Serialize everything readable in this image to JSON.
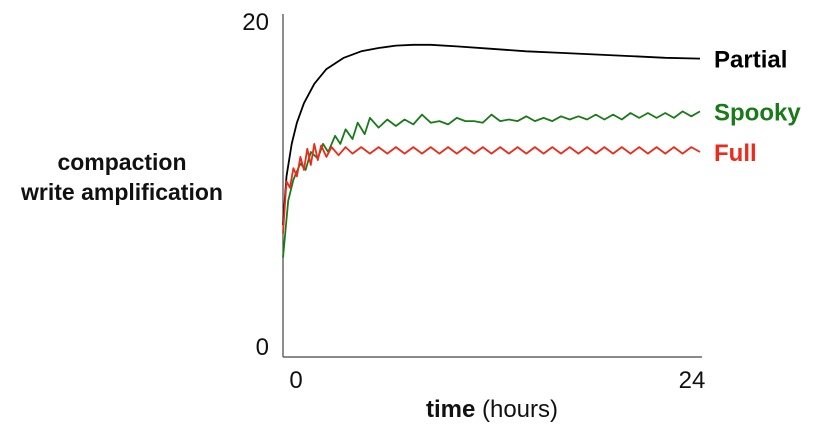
{
  "chart_data": {
    "type": "line",
    "title": "",
    "xlabel_bold": "time",
    "xlabel_rest": " (hours)",
    "ylabel_lines": [
      "compaction",
      "write amplification"
    ],
    "xlim": [
      0,
      24
    ],
    "ylim": [
      0,
      20
    ],
    "x_ticks": [
      {
        "value": 0,
        "label": "0"
      },
      {
        "value": 24,
        "label": "24"
      }
    ],
    "y_ticks": [
      {
        "value": 0,
        "label": "0"
      },
      {
        "value": 20,
        "label": "20"
      }
    ],
    "grid": false,
    "legend": "inline labels at right end of each series",
    "series": [
      {
        "name": "Partial",
        "color": "#000000",
        "x": [
          0,
          0.2,
          0.5,
          0.8,
          1.2,
          1.8,
          2.5,
          3.5,
          4.5,
          5.5,
          6.5,
          7.5,
          8.5,
          10,
          12,
          14,
          16,
          18,
          20,
          22,
          24
        ],
        "y": [
          7.5,
          10.5,
          12.5,
          13.8,
          15.0,
          16.2,
          17.1,
          17.8,
          18.2,
          18.4,
          18.55,
          18.6,
          18.6,
          18.5,
          18.35,
          18.2,
          18.1,
          18.0,
          17.9,
          17.8,
          17.75
        ]
      },
      {
        "name": "Spooky",
        "color": "#1a7a1a",
        "x": [
          0,
          0.3,
          0.6,
          1.0,
          1.3,
          1.6,
          2.0,
          2.3,
          2.6,
          3.0,
          3.3,
          3.6,
          4.0,
          4.3,
          4.7,
          5.0,
          5.5,
          6.0,
          6.5,
          7.0,
          7.5,
          8.0,
          8.5,
          9.0,
          9.5,
          10.0,
          10.5,
          11.0,
          11.5,
          12.0,
          12.5,
          13.0,
          13.5,
          14.0,
          14.5,
          15.0,
          15.5,
          16.0,
          16.5,
          17.0,
          17.5,
          18.0,
          18.5,
          19.0,
          19.5,
          20.0,
          20.5,
          21.0,
          21.5,
          22.0,
          22.5,
          23.0,
          23.5,
          24.0
        ],
        "y": [
          5.5,
          9.0,
          10.3,
          11.3,
          10.9,
          12.0,
          11.6,
          12.5,
          12.0,
          13.0,
          12.5,
          13.4,
          12.8,
          13.8,
          13.1,
          14.1,
          13.5,
          14.0,
          13.6,
          14.0,
          13.7,
          14.3,
          13.8,
          13.9,
          13.7,
          14.1,
          13.9,
          13.9,
          13.8,
          14.3,
          13.9,
          14.0,
          13.9,
          14.2,
          13.9,
          14.1,
          13.9,
          14.2,
          14.0,
          14.2,
          14.0,
          14.3,
          14.0,
          14.3,
          14.0,
          14.4,
          14.1,
          14.4,
          14.1,
          14.4,
          14.1,
          14.5,
          14.2,
          14.5
        ]
      },
      {
        "name": "Full",
        "color": "#ee2a1a",
        "x": [
          0,
          0.2,
          0.4,
          0.6,
          0.8,
          1.0,
          1.2,
          1.4,
          1.6,
          1.8,
          2.0,
          2.2,
          2.5,
          2.8,
          3.2,
          3.6,
          4.0,
          4.5,
          5.0,
          5.5,
          6.0,
          6.5,
          7.0,
          7.5,
          8.0,
          8.5,
          9.0,
          9.5,
          10.0,
          10.5,
          11.0,
          11.5,
          12.0,
          12.5,
          13.0,
          13.5,
          14.0,
          14.5,
          15.0,
          15.5,
          16.0,
          16.5,
          17.0,
          17.5,
          18.0,
          18.5,
          19.0,
          19.5,
          20.0,
          20.5,
          21.0,
          21.5,
          22.0,
          22.5,
          23.0,
          23.5,
          24.0
        ],
        "y": [
          7.0,
          10.2,
          9.8,
          11.0,
          10.5,
          11.7,
          10.9,
          12.2,
          11.2,
          12.5,
          11.5,
          12.4,
          11.7,
          12.3,
          11.8,
          12.3,
          11.9,
          12.3,
          11.9,
          12.3,
          11.9,
          12.3,
          11.9,
          12.3,
          11.9,
          12.3,
          11.9,
          12.3,
          11.9,
          12.3,
          11.9,
          12.3,
          11.9,
          12.3,
          11.9,
          12.3,
          11.9,
          12.3,
          11.9,
          12.3,
          11.9,
          12.3,
          11.9,
          12.3,
          11.9,
          12.3,
          11.9,
          12.3,
          11.9,
          12.3,
          11.9,
          12.3,
          11.9,
          12.3,
          11.9,
          12.3,
          12.0
        ]
      }
    ]
  }
}
